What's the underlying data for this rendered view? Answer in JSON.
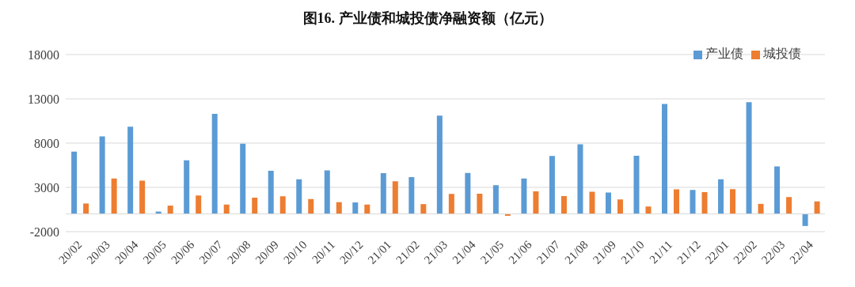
{
  "chart_data": {
    "type": "bar",
    "title": "图16.  产业债和城投债净融资额（亿元）",
    "categories": [
      "20/02",
      "20/03",
      "20/04",
      "20/05",
      "20/06",
      "20/07",
      "20/08",
      "20/09",
      "20/10",
      "20/11",
      "20/12",
      "21/01",
      "21/02",
      "21/03",
      "21/04",
      "21/05",
      "21/06",
      "21/07",
      "21/08",
      "21/09",
      "21/10",
      "21/11",
      "21/12",
      "22/01",
      "22/02",
      "22/03",
      "22/04"
    ],
    "series": [
      {
        "name": "产业债",
        "color": "#5b9bd5",
        "values": [
          7050,
          8760,
          9850,
          270,
          6050,
          11300,
          7940,
          4870,
          3920,
          4930,
          1300,
          4600,
          4160,
          11110,
          4640,
          3250,
          4000,
          6540,
          7860,
          2410,
          6570,
          12410,
          2710,
          3920,
          12620,
          5360,
          -1360
        ]
      },
      {
        "name": "城投债",
        "color": "#ed7d31",
        "values": [
          1180,
          4010,
          3750,
          940,
          2090,
          1060,
          1830,
          2000,
          1680,
          1330,
          1060,
          3690,
          1110,
          2260,
          2290,
          -210,
          2560,
          2020,
          2500,
          1630,
          840,
          2770,
          2470,
          2800,
          1140,
          1900,
          1420
        ]
      }
    ],
    "ylim": [
      -2000,
      18000
    ],
    "yticks": [
      -2000,
      3000,
      8000,
      13000,
      18000
    ],
    "grid": "y",
    "legend": "top right"
  }
}
